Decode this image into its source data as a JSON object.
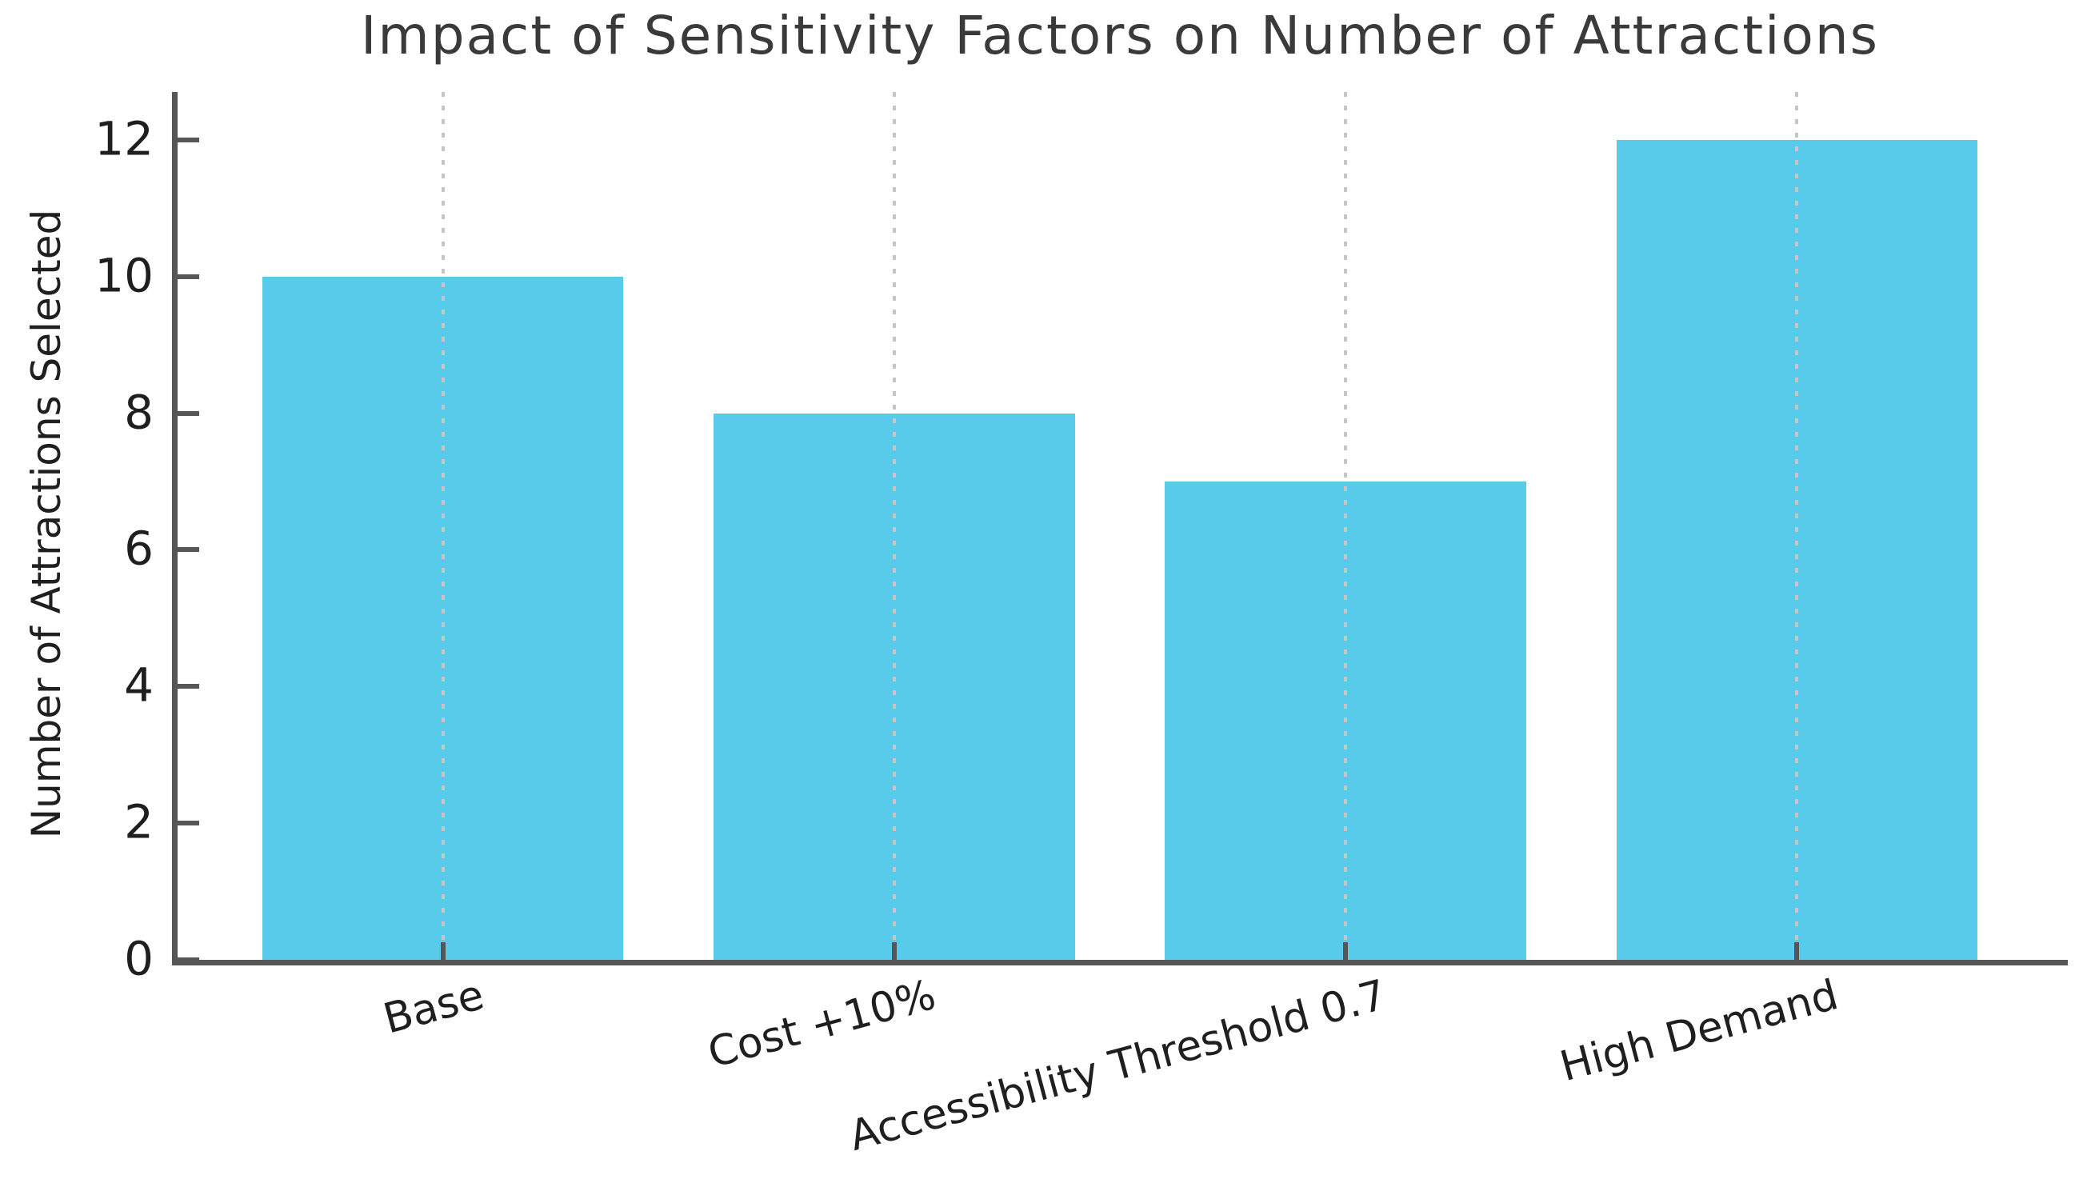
{
  "chart_data": {
    "type": "bar",
    "title": "Impact of Sensitivity Factors on Number of Attractions",
    "xlabel": "",
    "ylabel": "Number of Attractions Selected",
    "categories": [
      "Base",
      "Cost +10%",
      "Accessibility Threshold 0.7",
      "High Demand"
    ],
    "values": [
      10,
      8,
      7,
      12
    ],
    "yticks": [
      0,
      2,
      4,
      6,
      8,
      10,
      12
    ],
    "ylim": [
      0,
      12.7
    ],
    "grid": "vertical dotted gridlines at each category center",
    "legend": "none",
    "x_tick_rotation_deg": 15,
    "colors": {
      "bar": "#57CBE9",
      "spine": "#565656",
      "tick_mark": "#565656",
      "grid": "#c6c6c6",
      "title": "#3a3a3a",
      "axis_label": "#1f1f1f",
      "tick_label": "#1f1f1f",
      "background": "#ffffff"
    }
  }
}
